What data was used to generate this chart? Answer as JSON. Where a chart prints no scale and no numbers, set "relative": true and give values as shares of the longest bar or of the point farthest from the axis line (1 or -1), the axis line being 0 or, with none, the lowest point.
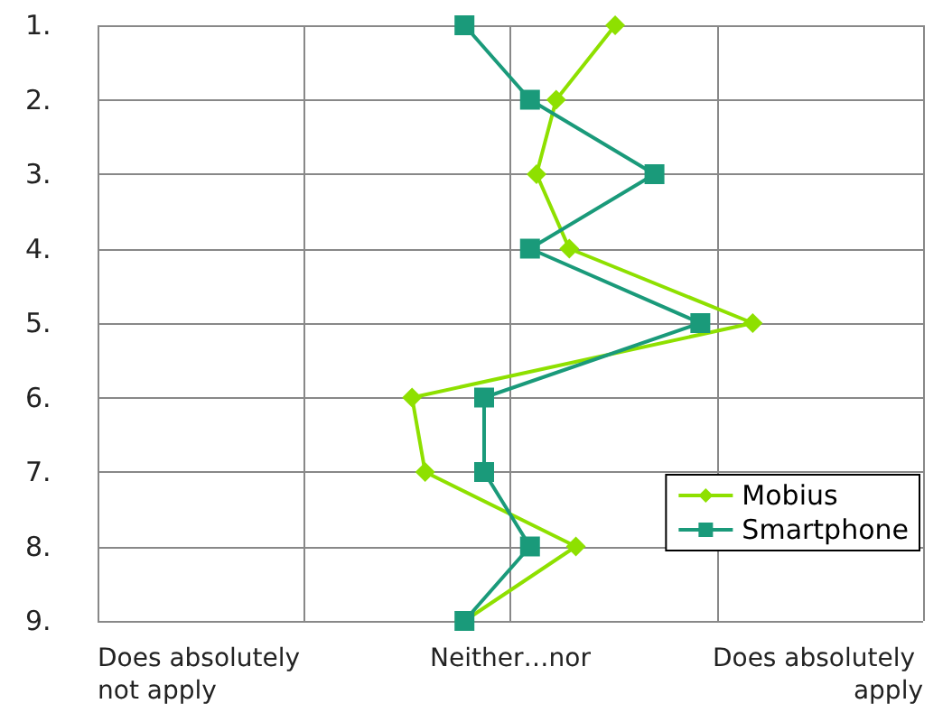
{
  "chart_data": {
    "type": "line",
    "orientation": "horizontal",
    "relative": true,
    "categories": [
      "1.",
      "2.",
      "3.",
      "4.",
      "5.",
      "6.",
      "7.",
      "8.",
      "9."
    ],
    "series": [
      {
        "name": "Mobius",
        "color": "#8ee000",
        "marker": "diamond",
        "values": [
          0.79,
          0.7,
          0.67,
          0.72,
          1,
          0.48,
          0.5,
          0.73,
          0.56
        ]
      },
      {
        "name": "Smartphone",
        "color": "#1a9a7a",
        "marker": "square",
        "values": [
          0.56,
          0.66,
          0.85,
          0.66,
          0.92,
          0.59,
          0.59,
          0.66,
          0.56
        ]
      }
    ],
    "annotations": [
      "Does absolutely not apply",
      "Neither…nor",
      "Does absolutely apply"
    ],
    "grid": true,
    "legend": "bottom right"
  }
}
